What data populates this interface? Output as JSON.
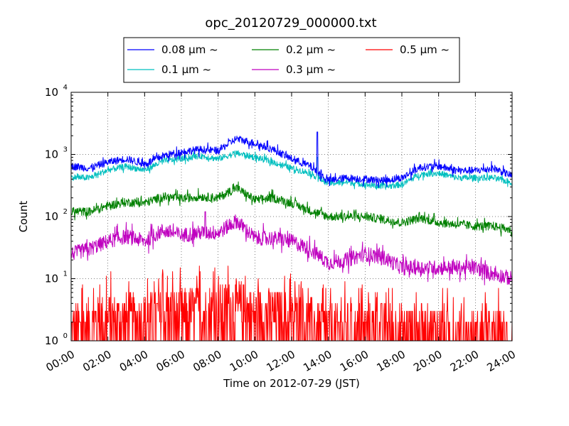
{
  "chart_data": {
    "type": "line",
    "title": "opc_20120729_000000.txt",
    "xlabel": "Time on 2012-07-29 (JST)",
    "ylabel": "Count",
    "x_range_hours": [
      0,
      24
    ],
    "ylim": [
      1,
      10000
    ],
    "yscale": "log",
    "grid": true,
    "legend_position": "top, above plot",
    "x_ticks": [
      "00:00",
      "02:00",
      "04:00",
      "06:00",
      "08:00",
      "10:00",
      "12:00",
      "14:00",
      "16:00",
      "18:00",
      "20:00",
      "22:00",
      "24:00"
    ],
    "y_ticks": [
      {
        "base": "10",
        "exp": "0",
        "value": 1
      },
      {
        "base": "10",
        "exp": "1",
        "value": 10
      },
      {
        "base": "10",
        "exp": "2",
        "value": 100
      },
      {
        "base": "10",
        "exp": "3",
        "value": 1000
      },
      {
        "base": "10",
        "exp": "4",
        "value": 10000
      }
    ],
    "x_hours": [
      0,
      1,
      2,
      3,
      4,
      5,
      6,
      7,
      8,
      9,
      10,
      11,
      12,
      13,
      14,
      15,
      16,
      17,
      18,
      19,
      20,
      21,
      22,
      23,
      24
    ],
    "series": [
      {
        "name": "0.08 μm ~",
        "color": "#0000ff",
        "noise": 0.06,
        "spikes": [
          [
            13.4,
            2300
          ]
        ],
        "values": [
          650,
          600,
          750,
          850,
          700,
          950,
          1100,
          1200,
          1150,
          1800,
          1500,
          1200,
          850,
          650,
          380,
          420,
          400,
          380,
          420,
          620,
          650,
          550,
          550,
          600,
          450
        ]
      },
      {
        "name": "0.1 μm ~",
        "color": "#00bfbf",
        "noise": 0.05,
        "spikes": [
          [
            13.4,
            900
          ]
        ],
        "values": [
          430,
          420,
          560,
          640,
          560,
          780,
          850,
          950,
          850,
          1050,
          900,
          750,
          600,
          500,
          340,
          360,
          330,
          300,
          330,
          480,
          500,
          420,
          420,
          420,
          350
        ]
      },
      {
        "name": "0.2 μm ~",
        "color": "#008000",
        "noise": 0.07,
        "spikes": [],
        "values": [
          120,
          120,
          150,
          170,
          165,
          210,
          195,
          210,
          200,
          290,
          185,
          200,
          165,
          125,
          100,
          100,
          100,
          90,
          80,
          95,
          80,
          75,
          70,
          70,
          60
        ]
      },
      {
        "name": "0.3 μm ~",
        "color": "#bf00bf",
        "noise": 0.12,
        "spikes": [
          [
            7.3,
            120
          ]
        ],
        "values": [
          25,
          30,
          40,
          48,
          40,
          60,
          50,
          55,
          55,
          85,
          45,
          45,
          40,
          30,
          18,
          20,
          25,
          22,
          15,
          15,
          15,
          15,
          15,
          12,
          10
        ]
      },
      {
        "name": "0.5 μm ~",
        "color": "#ff0000",
        "noise": 0.0,
        "spikes": [],
        "values": [
          2,
          2.5,
          3,
          3,
          3,
          3.5,
          3.5,
          4,
          4,
          5,
          3.5,
          3.5,
          3,
          2.5,
          2,
          2,
          2,
          2,
          2,
          2,
          2,
          1.5,
          1.5,
          1.5,
          1.5
        ]
      }
    ]
  }
}
